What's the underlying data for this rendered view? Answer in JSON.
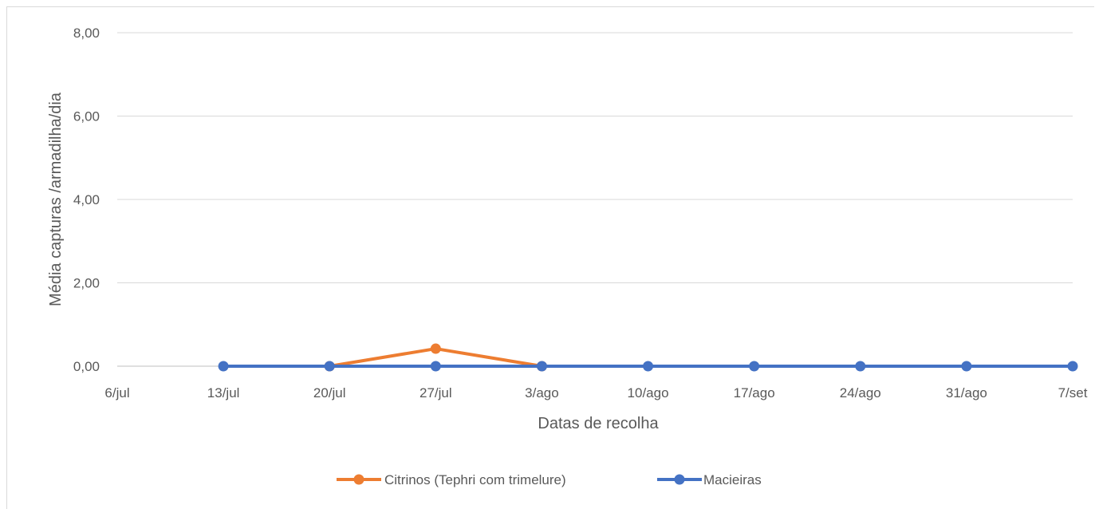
{
  "chart_data": {
    "type": "line",
    "title": "",
    "xlabel": "Datas de recolha",
    "ylabel": "Média capturas /armadilha/dia",
    "ylim": [
      0,
      8
    ],
    "y_ticks": [
      "0,00",
      "2,00",
      "4,00",
      "6,00",
      "8,00"
    ],
    "y_tick_values": [
      0,
      2,
      4,
      6,
      8
    ],
    "categories": [
      "6/jul",
      "13/jul",
      "20/jul",
      "27/jul",
      "3/ago",
      "10/ago",
      "17/ago",
      "24/ago",
      "31/ago",
      "7/set"
    ],
    "grid": true,
    "legend_position": "bottom",
    "series": [
      {
        "name": "Citrinos (Tephri com trimelure)",
        "color": "#ED7D31",
        "points": [
          {
            "x": "20/jul",
            "y": 0
          },
          {
            "x": "27/jul",
            "y": 0.42
          },
          {
            "x": "3/ago",
            "y": 0
          }
        ]
      },
      {
        "name": "Macieiras",
        "color": "#4472C4",
        "points": [
          {
            "x": "13/jul",
            "y": 0
          },
          {
            "x": "20/jul",
            "y": 0
          },
          {
            "x": "27/jul",
            "y": 0
          },
          {
            "x": "3/ago",
            "y": 0
          },
          {
            "x": "10/ago",
            "y": 0
          },
          {
            "x": "17/ago",
            "y": 0
          },
          {
            "x": "24/ago",
            "y": 0
          },
          {
            "x": "31/ago",
            "y": 0
          },
          {
            "x": "7/set",
            "y": 0
          }
        ]
      }
    ]
  }
}
